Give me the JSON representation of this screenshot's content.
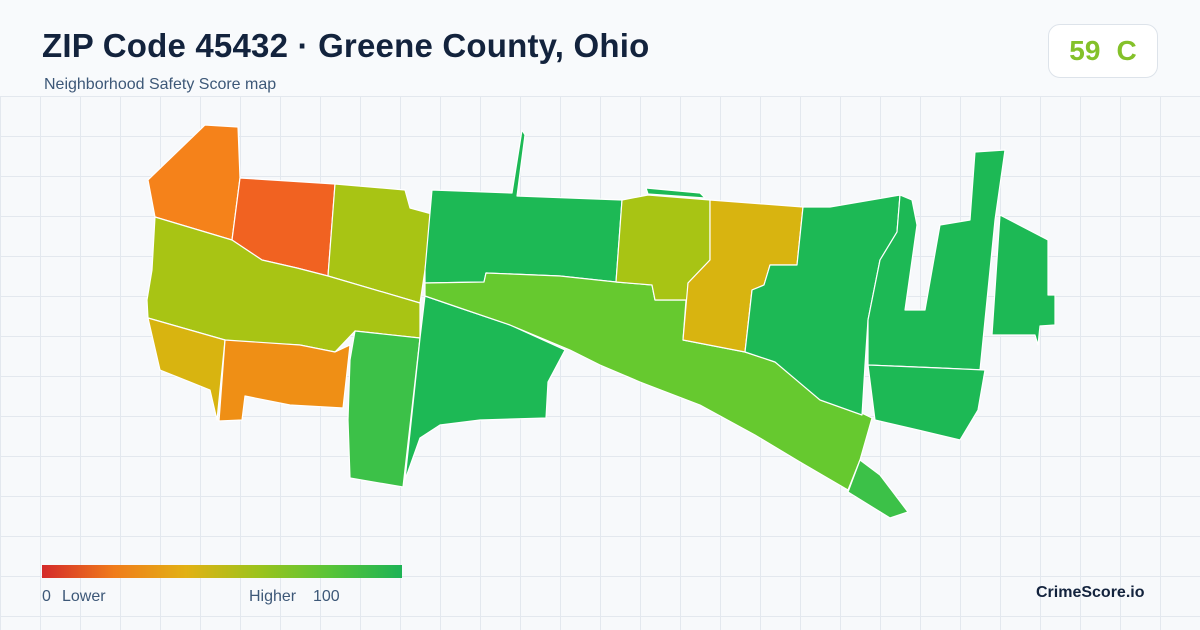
{
  "header": {
    "title": "ZIP Code 45432 · Greene County, Ohio",
    "subtitle": "Neighborhood Safety Score map"
  },
  "score": {
    "value": "59",
    "grade": "C",
    "color": "#84c12a"
  },
  "legend": {
    "min_label": "0",
    "low_label": "Lower",
    "high_label": "Higher",
    "max_label": "100",
    "colors": [
      "#d42a2a",
      "#f07c1b",
      "#e2b114",
      "#9cc31c",
      "#58c437",
      "#1db355"
    ]
  },
  "brand": "CrimeScore.io",
  "map": {
    "fill_colors": {
      "red_orange": "#f16221",
      "orange": "#f5821a",
      "dark_orange": "#ef8f15",
      "amber": "#d8b410",
      "yellow_green": "#a8c414",
      "lime": "#66c92f",
      "light_green": "#3cc148",
      "green": "#1db955"
    }
  }
}
